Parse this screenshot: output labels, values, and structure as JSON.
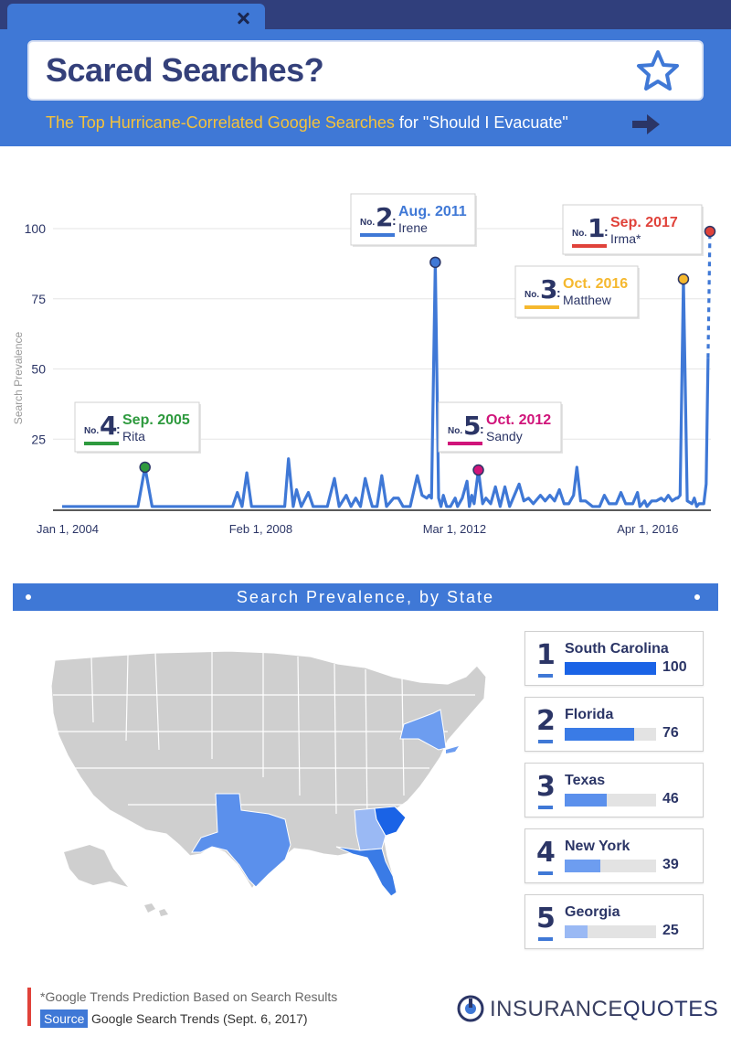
{
  "header": {
    "title": "Scared Searches?",
    "subtitle_highlight": "The Top Hurricane-Correlated Google Searches",
    "subtitle_rest": " for \"Should I Evacuate\"",
    "tab_dot_colors": [
      "#e74c3c",
      "#f5b82e",
      "#38c172"
    ],
    "star_icon": "star-outline",
    "arrow_icon": "arrow-right"
  },
  "chart_data": {
    "type": "line",
    "ylabel": "Search Prevalence",
    "ylim": [
      0,
      100
    ],
    "yticks": [
      25,
      50,
      75,
      100
    ],
    "xtick_labels": [
      "Jan 1, 2004",
      "Feb 1, 2008",
      "Mar 1, 2012",
      "Apr 1, 2016"
    ],
    "xtick_years": [
      2004.0,
      2008.08,
      2012.17,
      2016.25
    ],
    "xlim": [
      2004.0,
      2017.7
    ],
    "color": "#3f78d6",
    "series": [
      {
        "values": [
          [
            2004.0,
            1
          ],
          [
            2005.6,
            1
          ],
          [
            2005.75,
            15
          ],
          [
            2005.9,
            1
          ],
          [
            2007.6,
            1
          ],
          [
            2007.7,
            6
          ],
          [
            2007.8,
            1
          ],
          [
            2007.9,
            13
          ],
          [
            2008.0,
            1
          ],
          [
            2008.5,
            1
          ],
          [
            2008.6,
            1
          ],
          [
            2008.7,
            1
          ],
          [
            2008.78,
            18
          ],
          [
            2008.88,
            1
          ],
          [
            2008.95,
            7
          ],
          [
            2009.05,
            1
          ],
          [
            2009.2,
            6
          ],
          [
            2009.3,
            1
          ],
          [
            2009.6,
            1
          ],
          [
            2009.75,
            11
          ],
          [
            2009.85,
            1
          ],
          [
            2010.0,
            5
          ],
          [
            2010.1,
            1
          ],
          [
            2010.2,
            4
          ],
          [
            2010.3,
            1
          ],
          [
            2010.4,
            11
          ],
          [
            2010.5,
            4
          ],
          [
            2010.55,
            1
          ],
          [
            2010.65,
            1
          ],
          [
            2010.75,
            12
          ],
          [
            2010.85,
            1
          ],
          [
            2011.0,
            4
          ],
          [
            2011.1,
            4
          ],
          [
            2011.2,
            1
          ],
          [
            2011.35,
            1
          ],
          [
            2011.5,
            12
          ],
          [
            2011.6,
            5
          ],
          [
            2011.7,
            4
          ],
          [
            2011.75,
            5
          ],
          [
            2011.8,
            4
          ],
          [
            2011.88,
            88
          ],
          [
            2011.95,
            4
          ],
          [
            2012.0,
            1
          ],
          [
            2012.05,
            5
          ],
          [
            2012.12,
            1
          ],
          [
            2012.2,
            1
          ],
          [
            2012.3,
            4
          ],
          [
            2012.35,
            1
          ],
          [
            2012.45,
            4
          ],
          [
            2012.55,
            10
          ],
          [
            2012.6,
            1
          ],
          [
            2012.65,
            5
          ],
          [
            2012.7,
            2
          ],
          [
            2012.79,
            14
          ],
          [
            2012.88,
            2
          ],
          [
            2012.95,
            4
          ],
          [
            2013.05,
            2
          ],
          [
            2013.15,
            8
          ],
          [
            2013.25,
            1
          ],
          [
            2013.35,
            8
          ],
          [
            2013.45,
            1
          ],
          [
            2013.55,
            5
          ],
          [
            2013.65,
            9
          ],
          [
            2013.75,
            3
          ],
          [
            2013.85,
            4
          ],
          [
            2013.95,
            2
          ],
          [
            2014.1,
            5
          ],
          [
            2014.2,
            3
          ],
          [
            2014.3,
            5
          ],
          [
            2014.4,
            3
          ],
          [
            2014.5,
            7
          ],
          [
            2014.6,
            2
          ],
          [
            2014.7,
            2
          ],
          [
            2014.8,
            5
          ],
          [
            2014.87,
            15
          ],
          [
            2014.95,
            3
          ],
          [
            2015.05,
            3
          ],
          [
            2015.2,
            1
          ],
          [
            2015.35,
            1
          ],
          [
            2015.45,
            5
          ],
          [
            2015.55,
            2
          ],
          [
            2015.7,
            2
          ],
          [
            2015.8,
            6
          ],
          [
            2015.9,
            2
          ],
          [
            2016.0,
            2
          ],
          [
            2016.05,
            2
          ],
          [
            2016.15,
            6
          ],
          [
            2016.2,
            1
          ],
          [
            2016.3,
            3
          ],
          [
            2016.35,
            1
          ],
          [
            2016.45,
            3
          ],
          [
            2016.55,
            3
          ],
          [
            2016.65,
            4
          ],
          [
            2016.72,
            3
          ],
          [
            2016.8,
            5
          ],
          [
            2016.88,
            3
          ],
          [
            2016.97,
            4
          ],
          [
            2017.0,
            4
          ],
          [
            2017.05,
            5
          ],
          [
            2017.12,
            82
          ],
          [
            2017.2,
            3
          ],
          [
            2017.3,
            2
          ],
          [
            2017.35,
            4
          ],
          [
            2017.4,
            1
          ],
          [
            2017.45,
            2
          ],
          [
            2017.55,
            2
          ],
          [
            2017.6,
            9
          ],
          [
            2017.64,
            54
          ]
        ]
      }
    ],
    "projection": [
      [
        2017.64,
        54
      ],
      [
        2017.68,
        99
      ]
    ],
    "markers": [
      {
        "x": 2005.75,
        "y": 15,
        "color": "#2e9a3e"
      },
      {
        "x": 2011.88,
        "y": 88,
        "color": "#3f78d6"
      },
      {
        "x": 2012.79,
        "y": 14,
        "color": "#d0147a"
      },
      {
        "x": 2017.12,
        "y": 82,
        "color": "#f5b82e"
      },
      {
        "x": 2017.68,
        "y": 99,
        "color": "#e0423a"
      }
    ],
    "annotations": [
      {
        "no": "No.",
        "rank": "4",
        "date": "Sep. 2005",
        "name": "Rita",
        "color": "#2e9a3e"
      },
      {
        "no": "No.",
        "rank": "2",
        "date": "Aug. 2011",
        "name": "Irene",
        "color": "#3f78d6"
      },
      {
        "no": "No.",
        "rank": "5",
        "date": "Oct. 2012",
        "name": "Sandy",
        "color": "#d0147a"
      },
      {
        "no": "No.",
        "rank": "3",
        "date": "Oct. 2016",
        "name": "Matthew",
        "color": "#f5b82e"
      },
      {
        "no": "No.",
        "rank": "1",
        "date": "Sep. 2017",
        "name": "Irma*",
        "color": "#e0423a"
      }
    ]
  },
  "section": {
    "banner": "Search Prevalence, by State"
  },
  "states": [
    {
      "rank": "1",
      "name": "South Carolina",
      "value": 100,
      "value_label": "100",
      "color": "#1a63e6"
    },
    {
      "rank": "2",
      "name": "Florida",
      "value": 76,
      "value_label": "76",
      "color": "#3a7be6"
    },
    {
      "rank": "3",
      "name": "Texas",
      "value": 46,
      "value_label": "46",
      "color": "#5b90ec"
    },
    {
      "rank": "4",
      "name": "New York",
      "value": 39,
      "value_label": "39",
      "color": "#6d9df0"
    },
    {
      "rank": "5",
      "name": "Georgia",
      "value": 25,
      "value_label": "25",
      "color": "#9ab9f4"
    }
  ],
  "footer": {
    "footnote": "*Google Trends Prediction Based on Search Results",
    "source_label": "Source",
    "source_text": "Google Search Trends (Sept. 6, 2017)",
    "logo_thin": "INSURANCE",
    "logo_bold": "QUOTES"
  }
}
